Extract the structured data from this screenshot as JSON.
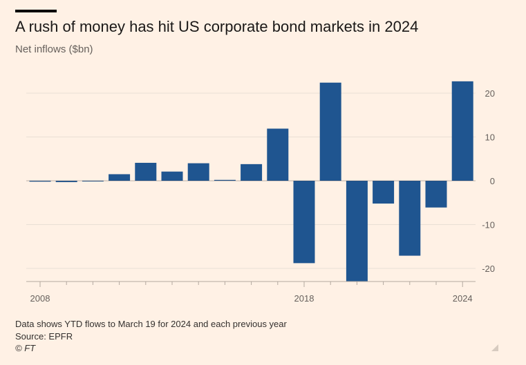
{
  "header": {
    "title": "A rush of money has hit US corporate bond markets in 2024",
    "subtitle": "Net inflows ($bn)"
  },
  "footer": {
    "note": "Data shows YTD flows to March 19 for 2024 and each previous year",
    "source": "Source: EPFR",
    "credit": "© FT"
  },
  "colors": {
    "background": "#fff1e5",
    "bar": "#1f5590",
    "grid": "#e9dfd5",
    "axis_text": "#66605c"
  },
  "chart_data": {
    "type": "bar",
    "title": "A rush of money has hit US corporate bond markets in 2024",
    "subtitle": "Net inflows ($bn)",
    "xlabel": "",
    "ylabel": "",
    "categories": [
      2008,
      2009,
      2010,
      2011,
      2012,
      2013,
      2014,
      2015,
      2016,
      2017,
      2018,
      2019,
      2020,
      2021,
      2022,
      2023,
      2024
    ],
    "x_tick_labels": [
      "2008",
      "2018",
      "2024"
    ],
    "values": [
      -0.2,
      -0.3,
      -0.1,
      1.5,
      4.1,
      2.1,
      4.0,
      0.2,
      3.8,
      11.9,
      -18.8,
      22.4,
      -23.0,
      -5.2,
      -17.1,
      -6.1,
      22.7
    ],
    "ylim": [
      -23,
      24
    ],
    "y_ticks": [
      20,
      10,
      0,
      -10,
      -20
    ],
    "y_axis_side": "right",
    "grid": true
  }
}
